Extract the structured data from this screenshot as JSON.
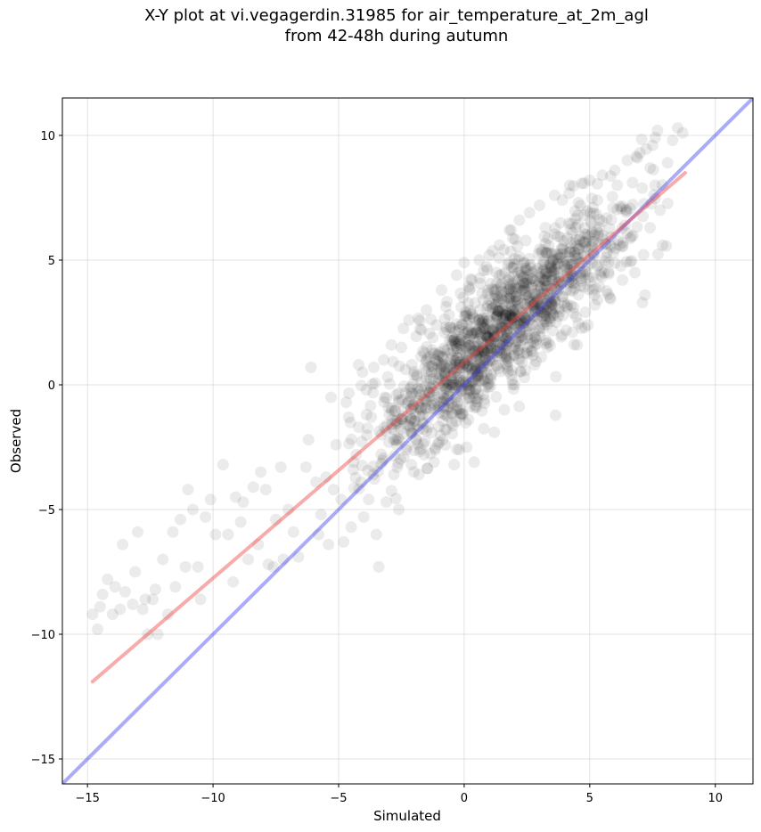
{
  "chart_data": {
    "type": "scatter",
    "title": "X-Y plot at vi.vegagerdin.31985 for air_temperature_at_2m_agl",
    "subtitle": "from 42-48h during autumn",
    "xlabel": "Simulated",
    "ylabel": "Observed",
    "xlim": [
      -16,
      11.5
    ],
    "ylim": [
      -16,
      11.5
    ],
    "xticks": [
      -15,
      -10,
      -5,
      0,
      5,
      10
    ],
    "yticks": [
      -15,
      -10,
      -5,
      0,
      5,
      10
    ],
    "xtick_labels": [
      "−15",
      "−10",
      "−5",
      "0",
      "5",
      "10"
    ],
    "ytick_labels": [
      "−15",
      "−10",
      "−5",
      "0",
      "5",
      "10"
    ],
    "grid": true,
    "point_color": "#000000",
    "point_alpha": 0.08,
    "point_count_estimate": 1500,
    "fit_line": {
      "color": "#ee4444",
      "alpha": 0.45,
      "points": [
        [
          -14.8,
          -11.9
        ],
        [
          8.8,
          8.5
        ]
      ]
    },
    "identity_line": {
      "color": "#4444ee",
      "alpha": 0.45,
      "points": [
        [
          -16,
          -16
        ],
        [
          11.5,
          11.5
        ]
      ]
    },
    "sparse_points": [
      [
        -14.8,
        -9.2
      ],
      [
        -14.6,
        -9.8
      ],
      [
        -14.5,
        -8.9
      ],
      [
        -14.4,
        -8.4
      ],
      [
        -14.2,
        -7.8
      ],
      [
        -14.0,
        -9.2
      ],
      [
        -13.9,
        -8.1
      ],
      [
        -13.7,
        -9.0
      ],
      [
        -13.6,
        -6.4
      ],
      [
        -13.5,
        -8.3
      ],
      [
        -13.2,
        -8.8
      ],
      [
        -13.1,
        -7.5
      ],
      [
        -13.0,
        -5.9
      ],
      [
        -12.8,
        -9.0
      ],
      [
        -12.7,
        -8.6
      ],
      [
        -12.6,
        -10.0
      ],
      [
        -12.4,
        -8.6
      ],
      [
        -12.3,
        -8.2
      ],
      [
        -12.2,
        -10.0
      ],
      [
        -12.0,
        -7.0
      ],
      [
        -11.8,
        -9.2
      ],
      [
        -11.6,
        -5.9
      ],
      [
        -11.5,
        -8.1
      ],
      [
        -11.3,
        -5.4
      ],
      [
        -11.1,
        -7.3
      ],
      [
        -11.0,
        -4.2
      ],
      [
        -10.8,
        -5.0
      ],
      [
        -10.6,
        -7.3
      ],
      [
        -10.5,
        -8.6
      ],
      [
        -10.3,
        -5.3
      ],
      [
        -10.1,
        -4.6
      ],
      [
        -9.9,
        -6.0
      ],
      [
        -9.6,
        -3.2
      ],
      [
        -9.4,
        -6.0
      ],
      [
        -9.2,
        -7.9
      ],
      [
        -9.1,
        -4.5
      ],
      [
        -8.9,
        -5.5
      ],
      [
        -8.8,
        -4.7
      ],
      [
        -8.6,
        -7.0
      ],
      [
        -8.4,
        -4.1
      ],
      [
        -8.2,
        -6.4
      ],
      [
        -8.1,
        -3.5
      ],
      [
        -7.9,
        -4.2
      ],
      [
        -7.8,
        -7.2
      ],
      [
        -7.6,
        -7.3
      ],
      [
        -7.5,
        -5.4
      ],
      [
        -7.3,
        -3.3
      ],
      [
        -7.2,
        -7.0
      ],
      [
        -7.0,
        -5.0
      ],
      [
        -6.8,
        -5.9
      ],
      [
        -6.6,
        -6.9
      ],
      [
        -6.3,
        -3.3
      ],
      [
        -6.2,
        -2.2
      ],
      [
        -6.1,
        0.7
      ],
      [
        -5.9,
        -3.9
      ],
      [
        -5.8,
        -6.0
      ],
      [
        -5.7,
        -5.2
      ],
      [
        -5.5,
        -3.7
      ],
      [
        -5.4,
        -6.4
      ],
      [
        -5.3,
        -0.5
      ],
      [
        -5.2,
        -4.2
      ],
      [
        -5.1,
        -2.4
      ],
      [
        -4.9,
        -4.6
      ],
      [
        -4.8,
        -6.3
      ],
      [
        -4.7,
        -0.7
      ],
      [
        -4.6,
        -1.3
      ],
      [
        -4.5,
        -5.7
      ],
      [
        -4.4,
        -3.1
      ],
      [
        -4.3,
        -2.8
      ],
      [
        -4.2,
        0.8
      ],
      [
        -4.1,
        -3.9
      ],
      [
        -4.0,
        -5.3
      ],
      [
        -3.9,
        -0.2
      ],
      [
        -3.8,
        -4.6
      ],
      [
        -3.7,
        -1.3
      ],
      [
        -3.6,
        0.7
      ],
      [
        -3.5,
        -6.0
      ],
      [
        -3.4,
        -7.3
      ],
      [
        -3.3,
        -2.0
      ],
      [
        -3.2,
        1.0
      ],
      [
        -3.1,
        -4.7
      ],
      [
        -3.0,
        -2.3
      ],
      [
        -2.9,
        1.6
      ],
      [
        -2.8,
        -3.6
      ],
      [
        -2.7,
        -0.4
      ],
      [
        -2.6,
        -5.0
      ],
      [
        -2.5,
        1.5
      ],
      [
        -2.4,
        -2.9
      ],
      [
        -2.2,
        2.6
      ],
      [
        -2.1,
        -3.2
      ],
      [
        -2.0,
        0.4
      ],
      [
        -1.8,
        -3.6
      ],
      [
        -1.7,
        2.2
      ],
      [
        -1.6,
        -2.8
      ],
      [
        -1.5,
        3.0
      ],
      [
        -1.4,
        -0.5
      ],
      [
        -1.2,
        -3.1
      ],
      [
        -1.1,
        2.4
      ],
      [
        -1.0,
        -2.3
      ],
      [
        -0.9,
        3.8
      ],
      [
        -0.7,
        -1.8
      ],
      [
        -0.6,
        2.8
      ],
      [
        -0.4,
        -3.2
      ],
      [
        -0.3,
        4.4
      ],
      [
        -0.2,
        -2.6
      ],
      [
        0.0,
        4.9
      ],
      [
        0.1,
        -2.5
      ],
      [
        0.3,
        4.2
      ],
      [
        0.4,
        -3.1
      ],
      [
        0.6,
        5.0
      ],
      [
        0.8,
        -0.6
      ],
      [
        1.0,
        5.2
      ],
      [
        1.2,
        -1.9
      ],
      [
        1.4,
        5.6
      ],
      [
        1.6,
        -1.0
      ],
      [
        1.8,
        6.2
      ],
      [
        2.0,
        0.0
      ],
      [
        2.2,
        6.6
      ],
      [
        2.4,
        0.3
      ],
      [
        2.6,
        6.9
      ],
      [
        2.8,
        0.8
      ],
      [
        3.0,
        7.2
      ],
      [
        3.3,
        1.5
      ],
      [
        3.6,
        7.6
      ],
      [
        3.9,
        2.0
      ],
      [
        4.2,
        8.0
      ],
      [
        4.5,
        1.6
      ],
      [
        4.8,
        2.3
      ],
      [
        5.0,
        8.2
      ],
      [
        5.2,
        3.2
      ],
      [
        5.5,
        8.4
      ],
      [
        5.8,
        3.5
      ],
      [
        6.0,
        8.6
      ],
      [
        6.3,
        4.2
      ],
      [
        6.5,
        9.0
      ],
      [
        6.8,
        4.5
      ],
      [
        7.0,
        9.3
      ],
      [
        7.1,
        3.3
      ],
      [
        7.2,
        3.6
      ],
      [
        7.4,
        6.3
      ],
      [
        7.5,
        9.6
      ],
      [
        7.7,
        10.2
      ],
      [
        7.9,
        5.6
      ],
      [
        8.1,
        8.9
      ],
      [
        8.3,
        9.8
      ],
      [
        8.5,
        10.3
      ],
      [
        8.7,
        10.1
      ],
      [
        7.6,
        8.0
      ],
      [
        7.8,
        7.0
      ],
      [
        6.9,
        9.1
      ]
    ],
    "cluster": {
      "x_mean": 1.4,
      "x_sd": 2.6,
      "y_noise_sd": 1.25,
      "x_range": [
        -4.6,
        8.2
      ],
      "slope": 0.87,
      "intercept": 0.95,
      "count": 1350
    },
    "series": [
      {
        "values": "scatter points (semi-transparent black markers)"
      }
    ]
  }
}
